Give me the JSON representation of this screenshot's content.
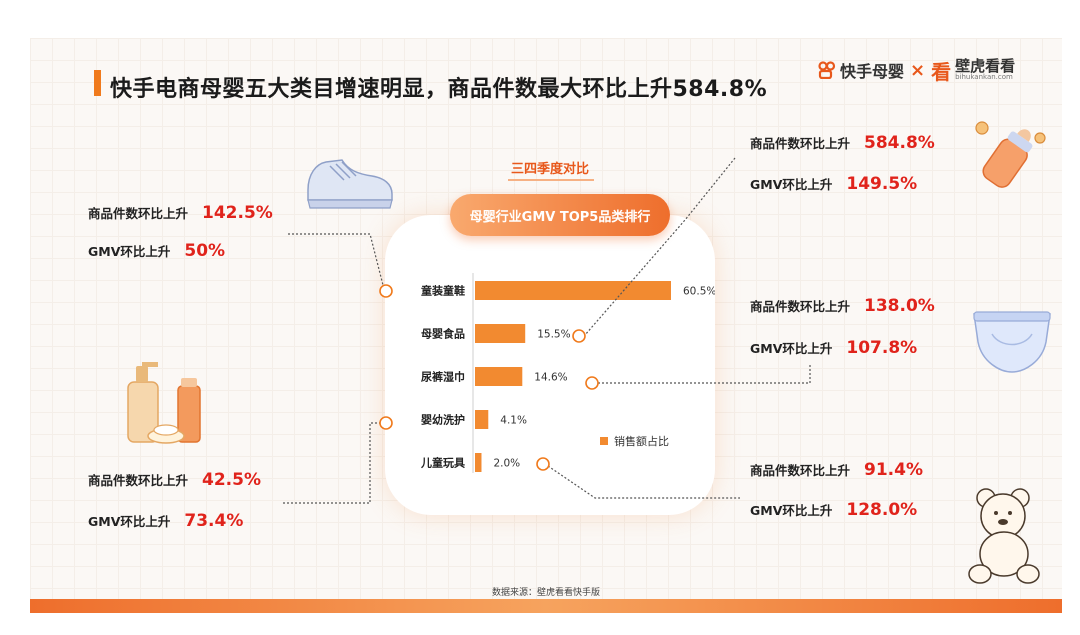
{
  "title": "快手电商母婴五大类目增速明显，商品件数最大环比上升584.8%",
  "logo": {
    "left": "快手母婴",
    "times": "×",
    "right_mark": "看",
    "right": "壁虎看看",
    "right_sub": "bihukankan.com"
  },
  "compare_label": "三四季度对比",
  "pill_label": "母婴行业GMV TOP5品类排行",
  "legend_label": "销售额占比",
  "source": "数据来源：壁虎看看快手版",
  "colors": {
    "accent": "#f07a1c",
    "bar": "#f28a30",
    "highlight": "#e0231b"
  },
  "chart_data": {
    "type": "bar",
    "orientation": "horizontal",
    "title": "母婴行业GMV TOP5品类排行",
    "categories": [
      "童装童鞋",
      "母婴食品",
      "尿裤湿巾",
      "婴幼洗护",
      "儿童玩具"
    ],
    "series": [
      {
        "name": "销售额占比",
        "values": [
          60.5,
          15.5,
          14.6,
          4.1,
          2.0
        ]
      }
    ],
    "value_labels": [
      "60.5%",
      "15.5%",
      "14.6%",
      "4.1%",
      "2.0%"
    ],
    "unit": "%"
  },
  "stats": {
    "shoes": {
      "items_label": "商品件数环比上升",
      "items_value": "142.5%",
      "gmv_label": "GMV环比上升",
      "gmv_value": "50%"
    },
    "food": {
      "items_label": "商品件数环比上升",
      "items_value": "584.8%",
      "gmv_label": "GMV环比上升",
      "gmv_value": "149.5%"
    },
    "diaper": {
      "items_label": "商品件数环比上升",
      "items_value": "138.0%",
      "gmv_label": "GMV环比上升",
      "gmv_value": "107.8%"
    },
    "wash": {
      "items_label": "商品件数环比上升",
      "items_value": "42.5%",
      "gmv_label": "GMV环比上升",
      "gmv_value": "73.4%"
    },
    "toys": {
      "items_label": "商品件数环比上升",
      "items_value": "91.4%",
      "gmv_label": "GMV环比上升",
      "gmv_value": "128.0%"
    }
  }
}
